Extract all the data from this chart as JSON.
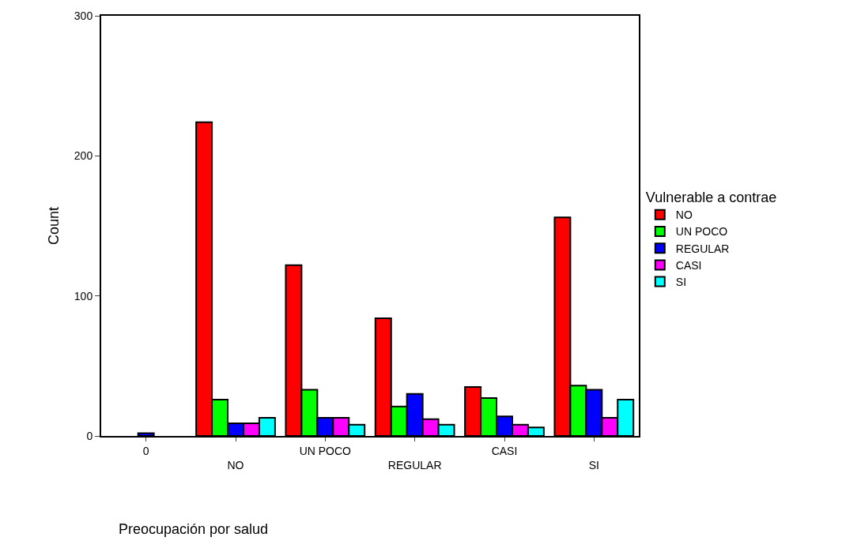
{
  "chart_data": {
    "type": "bar",
    "xlabel": "Preocupación por salud",
    "ylabel": "Count",
    "legend_title": "Vulnerable a contrae",
    "categories": [
      "0",
      "NO",
      "UN POCO",
      "REGULAR",
      "CASI",
      "SI"
    ],
    "series": [
      {
        "name": "NO",
        "color": "#ff0000",
        "values": [
          0,
          224,
          122,
          84,
          35,
          156
        ]
      },
      {
        "name": "UN POCO",
        "color": "#00ff00",
        "values": [
          0,
          26,
          33,
          21,
          27,
          36
        ]
      },
      {
        "name": "REGULAR",
        "color": "#0000ff",
        "values": [
          2,
          9,
          13,
          30,
          14,
          33
        ]
      },
      {
        "name": "CASI",
        "color": "#ff00ff",
        "values": [
          0,
          9,
          13,
          12,
          8,
          13
        ]
      },
      {
        "name": "SI",
        "color": "#00ffff",
        "values": [
          0,
          13,
          8,
          8,
          6,
          26
        ]
      }
    ],
    "ylim": [
      0,
      300
    ],
    "yticks": [
      0,
      100,
      200,
      300
    ],
    "legend": "right"
  }
}
